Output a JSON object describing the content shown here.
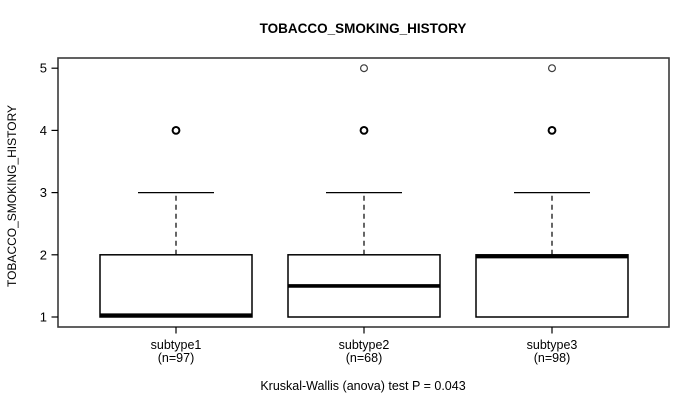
{
  "title": "TOBACCO_SMOKING_HISTORY",
  "footer": "Kruskal-Wallis (anova) test P = 0.043",
  "colors": {
    "line": "#000000",
    "background": "#ffffff",
    "frame": "#3a3a3a"
  },
  "chart_data": {
    "type": "boxplot",
    "title": "TOBACCO_SMOKING_HISTORY",
    "xlabel": "",
    "ylabel": "TOBACCO_SMOKING_HISTORY",
    "ylim": [
      1,
      5
    ],
    "yticks": [
      1,
      2,
      3,
      4,
      5
    ],
    "grid": "off",
    "annotation": "Kruskal-Wallis (anova) test P = 0.043",
    "groups": [
      {
        "label": "subtype1",
        "n_label": "(n=97)",
        "n": 97,
        "q1": 1,
        "median": 1,
        "q3": 2,
        "whisker_low": 1,
        "whisker_high": 3,
        "outliers": [
          {
            "value": 4,
            "bold": true
          }
        ]
      },
      {
        "label": "subtype2",
        "n_label": "(n=68)",
        "n": 68,
        "q1": 1,
        "median": 1.5,
        "q3": 2,
        "whisker_low": 1,
        "whisker_high": 3,
        "outliers": [
          {
            "value": 4,
            "bold": true
          },
          {
            "value": 5,
            "bold": false
          }
        ]
      },
      {
        "label": "subtype3",
        "n_label": "(n=98)",
        "n": 98,
        "q1": 1,
        "median": 2,
        "q3": 2,
        "whisker_low": 1,
        "whisker_high": 3,
        "outliers": [
          {
            "value": 4,
            "bold": true
          },
          {
            "value": 5,
            "bold": false
          }
        ]
      }
    ]
  }
}
